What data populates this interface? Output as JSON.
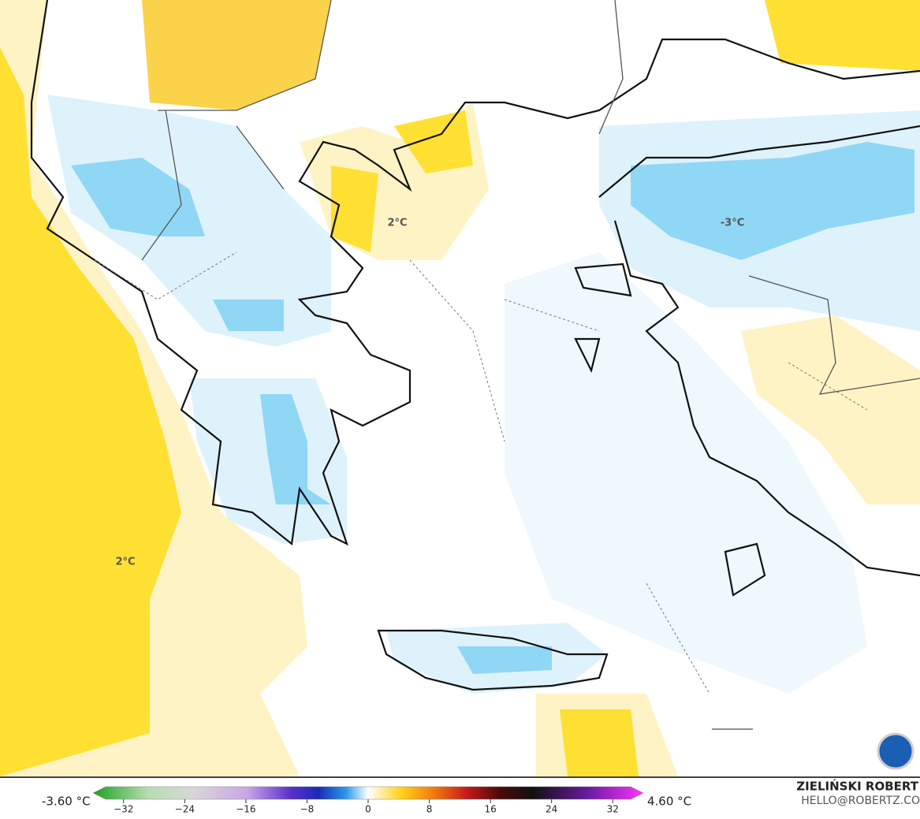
{
  "map": {
    "labels": [
      "2°C",
      "-3°C",
      "2°C"
    ]
  },
  "colorbar": {
    "min_label": "-3.60 °C",
    "max_label": "4.60 °C",
    "lim": [
      -36,
      36
    ],
    "ticks": [
      {
        "value": -32,
        "label": "−32"
      },
      {
        "value": -24,
        "label": "−24"
      },
      {
        "value": -16,
        "label": "−16"
      },
      {
        "value": -8,
        "label": "−8"
      },
      0,
      8,
      16,
      24,
      32
    ]
  },
  "credits": {
    "author": "ZIELIŃSKI ROBERT",
    "contact": "HELLO@ROBERTZ.CO"
  }
}
